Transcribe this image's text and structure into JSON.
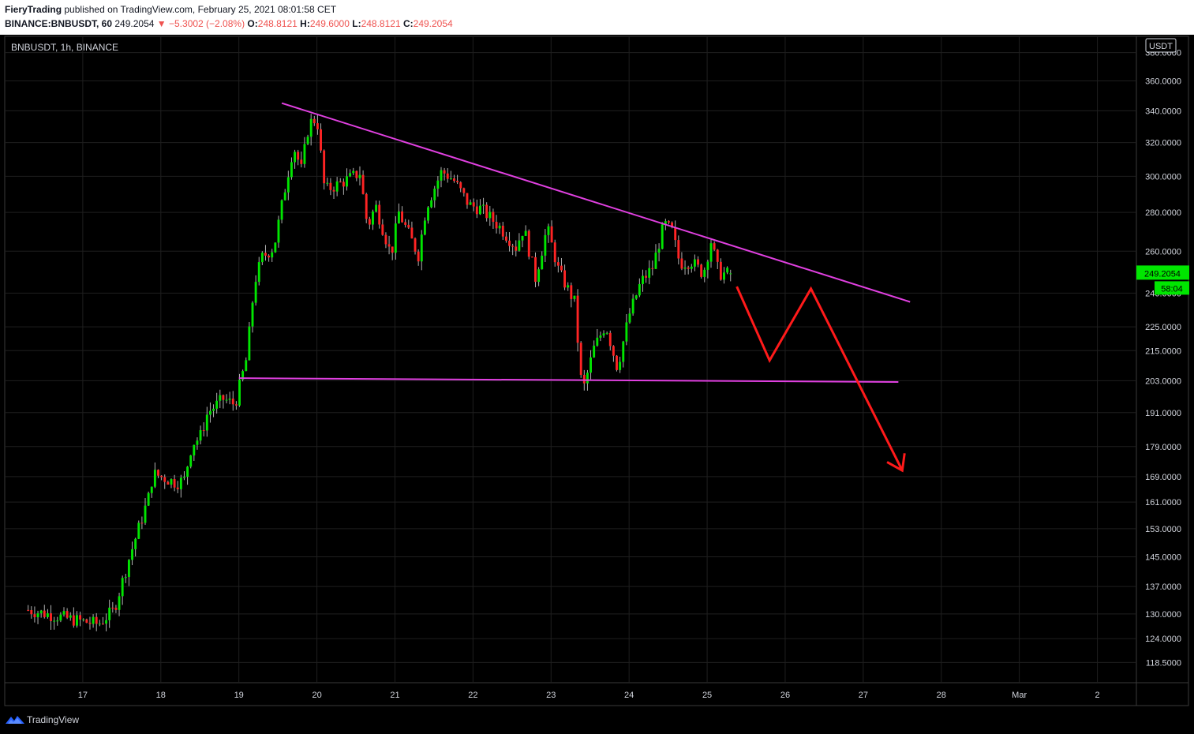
{
  "header": {
    "author": "FieryTrading",
    "published": "published on TradingView.com, February 25, 2021 08:01:58 CET",
    "symbol": "BINANCE:BNBUSDT, 60",
    "last": "249.2054",
    "change": "−5.3002 (−2.08%)",
    "o_label": "O:",
    "o_value": "248.8121",
    "h_label": "H:",
    "h_value": "249.6000",
    "l_label": "L:",
    "l_value": "248.8121",
    "c_label": "C:",
    "c_value": "249.2054"
  },
  "chart_title": "BNBUSDT, 1h, BINANCE",
  "currency_label": "USDT",
  "footer": {
    "brand": "TradingView"
  },
  "colors": {
    "up": "#00e600",
    "down": "#ff2424",
    "trendline": "#e040e0",
    "arrow": "#ff1a1a",
    "grid": "#1f1f1f",
    "background": "#000000"
  },
  "chart_data": {
    "type": "candlestick",
    "title": "BNBUSDT, 1h, BINANCE",
    "x_ticks": [
      "17",
      "18",
      "19",
      "20",
      "21",
      "22",
      "23",
      "24",
      "25",
      "26",
      "27",
      "28",
      "Mar",
      "2"
    ],
    "y_ticks": [
      380,
      360,
      340,
      320,
      300,
      280,
      260,
      240,
      225,
      215,
      203,
      191,
      179,
      169,
      161,
      153,
      145,
      137,
      130,
      124,
      118.5
    ],
    "y_tick_labels": [
      "380.0000",
      "360.0000",
      "340.0000",
      "320.0000",
      "300.0000",
      "280.0000",
      "260.0000",
      "240.0000",
      "225.0000",
      "215.0000",
      "203.0000",
      "191.0000",
      "179.0000",
      "169.0000",
      "161.0000",
      "153.0000",
      "145.0000",
      "137.0000",
      "130.0000",
      "124.0000",
      "118.5000"
    ],
    "y_scale": "log",
    "y_range": [
      114,
      392
    ],
    "price_badge": "249.2054",
    "countdown_badge": "58:04",
    "anchors": [
      {
        "x": 16.3,
        "y": 131
      },
      {
        "x": 16.9,
        "y": 128.5
      },
      {
        "x": 17.2,
        "y": 127.5
      },
      {
        "x": 17.4,
        "y": 131
      },
      {
        "x": 17.6,
        "y": 145
      },
      {
        "x": 17.85,
        "y": 163
      },
      {
        "x": 17.9,
        "y": 170
      },
      {
        "x": 18.2,
        "y": 167
      },
      {
        "x": 18.3,
        "y": 168
      },
      {
        "x": 18.4,
        "y": 180
      },
      {
        "x": 18.5,
        "y": 182
      },
      {
        "x": 18.6,
        "y": 191
      },
      {
        "x": 18.8,
        "y": 196
      },
      {
        "x": 18.95,
        "y": 194
      },
      {
        "x": 19.1,
        "y": 212
      },
      {
        "x": 19.2,
        "y": 245
      },
      {
        "x": 19.3,
        "y": 257
      },
      {
        "x": 19.45,
        "y": 262
      },
      {
        "x": 19.6,
        "y": 295
      },
      {
        "x": 19.7,
        "y": 318
      },
      {
        "x": 19.8,
        "y": 304
      },
      {
        "x": 19.9,
        "y": 332
      },
      {
        "x": 20.0,
        "y": 335
      },
      {
        "x": 20.1,
        "y": 292
      },
      {
        "x": 20.3,
        "y": 296
      },
      {
        "x": 20.55,
        "y": 302
      },
      {
        "x": 20.65,
        "y": 272
      },
      {
        "x": 20.75,
        "y": 284
      },
      {
        "x": 20.95,
        "y": 258
      },
      {
        "x": 21.05,
        "y": 280
      },
      {
        "x": 21.3,
        "y": 258
      },
      {
        "x": 21.4,
        "y": 283
      },
      {
        "x": 21.6,
        "y": 303
      },
      {
        "x": 21.75,
        "y": 298
      },
      {
        "x": 21.95,
        "y": 284
      },
      {
        "x": 22.1,
        "y": 282
      },
      {
        "x": 22.35,
        "y": 272
      },
      {
        "x": 22.55,
        "y": 262
      },
      {
        "x": 22.65,
        "y": 272
      },
      {
        "x": 22.8,
        "y": 247
      },
      {
        "x": 22.95,
        "y": 272
      },
      {
        "x": 23.1,
        "y": 250
      },
      {
        "x": 23.3,
        "y": 236
      },
      {
        "x": 23.4,
        "y": 198
      },
      {
        "x": 23.55,
        "y": 216
      },
      {
        "x": 23.7,
        "y": 226
      },
      {
        "x": 23.85,
        "y": 208
      },
      {
        "x": 24.0,
        "y": 230
      },
      {
        "x": 24.15,
        "y": 245
      },
      {
        "x": 24.3,
        "y": 252
      },
      {
        "x": 24.45,
        "y": 274
      },
      {
        "x": 24.55,
        "y": 270
      },
      {
        "x": 24.65,
        "y": 254
      },
      {
        "x": 24.8,
        "y": 255
      },
      {
        "x": 24.95,
        "y": 249
      },
      {
        "x": 25.05,
        "y": 265
      },
      {
        "x": 25.15,
        "y": 249
      },
      {
        "x": 25.3,
        "y": 249.2
      }
    ],
    "annotations": {
      "upper_trendline": [
        {
          "x": 19.55,
          "y": 345
        },
        {
          "x": 27.6,
          "y": 236
        }
      ],
      "lower_trendline": [
        {
          "x": 19.0,
          "y": 204
        },
        {
          "x": 27.45,
          "y": 202.5
        }
      ],
      "projection_path": [
        {
          "x": 25.38,
          "y": 243
        },
        {
          "x": 25.8,
          "y": 211
        },
        {
          "x": 26.33,
          "y": 242
        },
        {
          "x": 27.5,
          "y": 171
        }
      ]
    }
  }
}
